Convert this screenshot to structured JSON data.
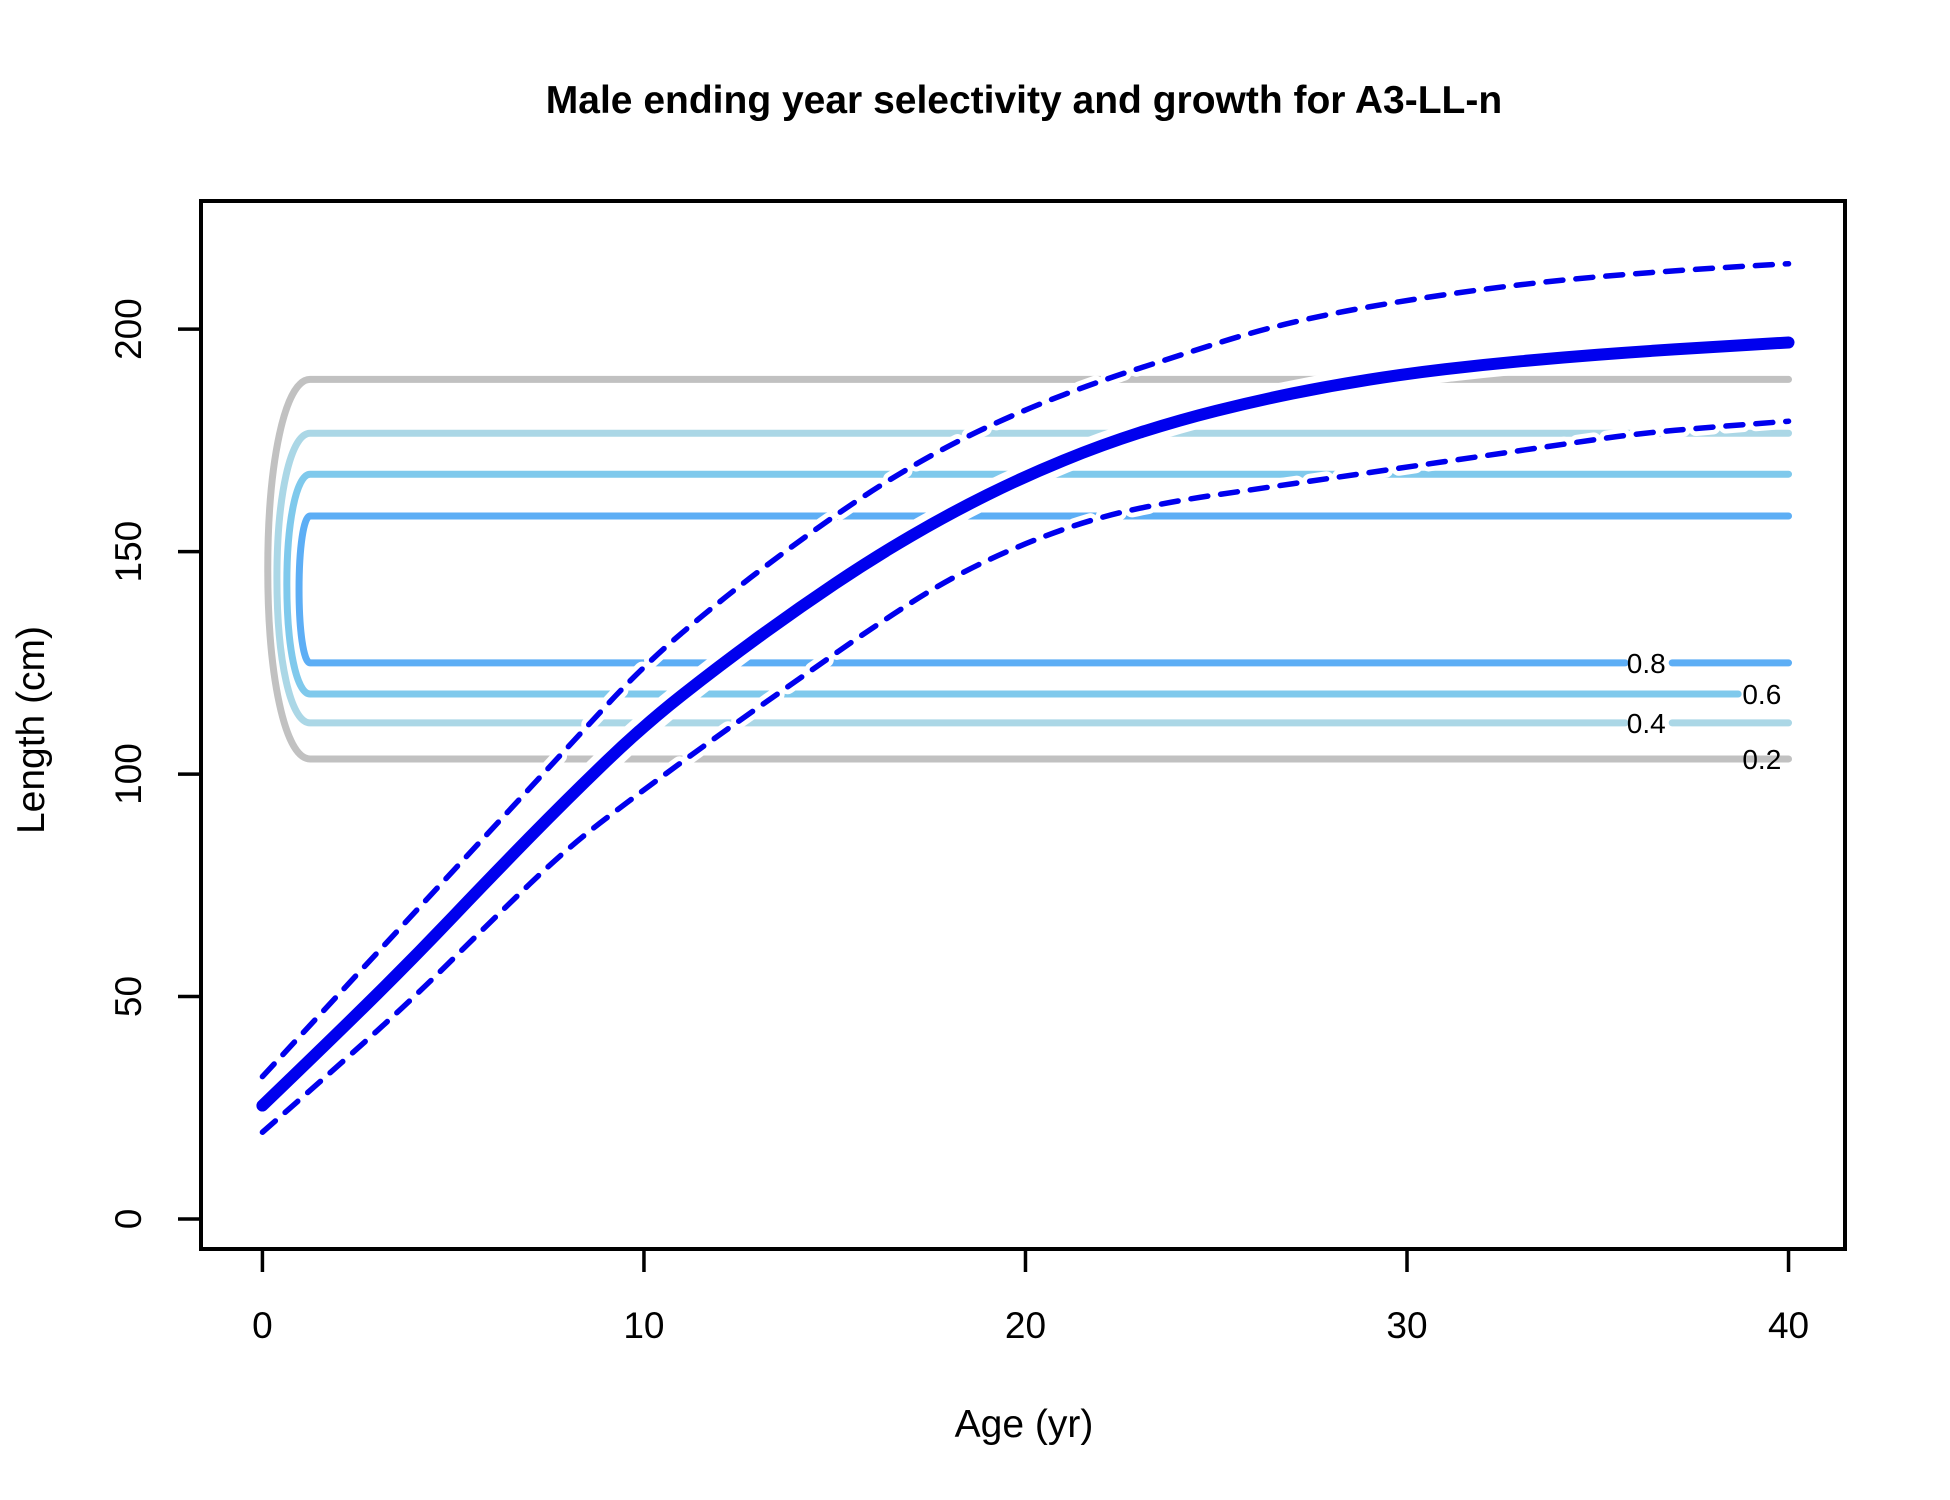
{
  "chart_data": {
    "type": "line",
    "title": "Male ending year selectivity and growth for A3-LL-n",
    "xlabel": "Age (yr)",
    "ylabel": "Length (cm)",
    "xlim": [
      -1.61,
      41.48
    ],
    "ylim": [
      -6.74,
      228.8
    ],
    "xticks": [
      0,
      10,
      20,
      30,
      40
    ],
    "yticks": [
      0,
      50,
      100,
      150,
      200
    ],
    "grid": false,
    "legend": "none",
    "growth_curves": {
      "ages": [
        0,
        2,
        4,
        6,
        8,
        10,
        12,
        14,
        16,
        18,
        20,
        22,
        24,
        26,
        28,
        30,
        32,
        34,
        36,
        38,
        40
      ],
      "series": [
        {
          "name": "mean_growth",
          "style": "solid",
          "width": 12,
          "values": [
            25.5,
            42,
            59,
            77,
            94.5,
            111,
            124.5,
            137,
            148.5,
            158.5,
            167,
            174,
            179.5,
            183.8,
            187.3,
            190,
            192,
            193.6,
            194.9,
            196,
            197
          ]
        },
        {
          "name": "upper_95ci",
          "style": "dashed",
          "width": 5.5,
          "values": [
            32,
            50.5,
            69,
            87.5,
            106,
            124.5,
            139,
            152,
            164,
            174,
            182,
            188.5,
            194,
            199.5,
            203.5,
            206.5,
            209,
            211,
            212.5,
            213.7,
            214.7
          ]
        },
        {
          "name": "lower_95ci",
          "style": "dashed",
          "width": 5.5,
          "values": [
            19.5,
            34.5,
            50,
            67,
            83.5,
            96.5,
            109,
            121,
            133,
            144,
            152,
            158,
            161.5,
            164,
            166.5,
            169,
            171.5,
            174,
            176.5,
            178,
            179.3
          ]
        }
      ]
    },
    "selectivity_contours": [
      {
        "level": 0.2,
        "label": "0.2",
        "color": "#c1c1c1",
        "top_length": 188.7,
        "bottom_length": 103.4,
        "cap_min_age": 0.14,
        "line_start_age": 1.25,
        "end_age": 40,
        "label_age": 39.3,
        "label_style": "end"
      },
      {
        "level": 0.4,
        "label": "0.4",
        "color": "#abd7e6",
        "top_length": 176.6,
        "bottom_length": 111.5,
        "cap_min_age": 0.38,
        "line_start_age": 1.25,
        "end_age": 40,
        "label_age": 36.27,
        "label_style": "inline",
        "gap_start_age": 35.72,
        "gap_end_age": 36.95
      },
      {
        "level": 0.6,
        "label": "0.6",
        "color": "#7fc9ec",
        "top_length": 167.4,
        "bottom_length": 118.0,
        "cap_min_age": 0.64,
        "line_start_age": 1.25,
        "end_age": 38.68,
        "label_age": 39.3,
        "label_style": "end"
      },
      {
        "level": 0.8,
        "label": "0.8",
        "color": "#5daef5",
        "top_length": 158.0,
        "bottom_length": 125.0,
        "cap_min_age": 0.96,
        "line_start_age": 1.25,
        "end_age": 40,
        "label_age": 36.27,
        "label_style": "inline",
        "gap_start_age": 35.72,
        "gap_end_age": 36.95
      }
    ],
    "colors": {
      "growth_line": "#0000ee",
      "ci_line": "#0000ee",
      "axis": "#000000",
      "background": "#ffffff"
    }
  }
}
